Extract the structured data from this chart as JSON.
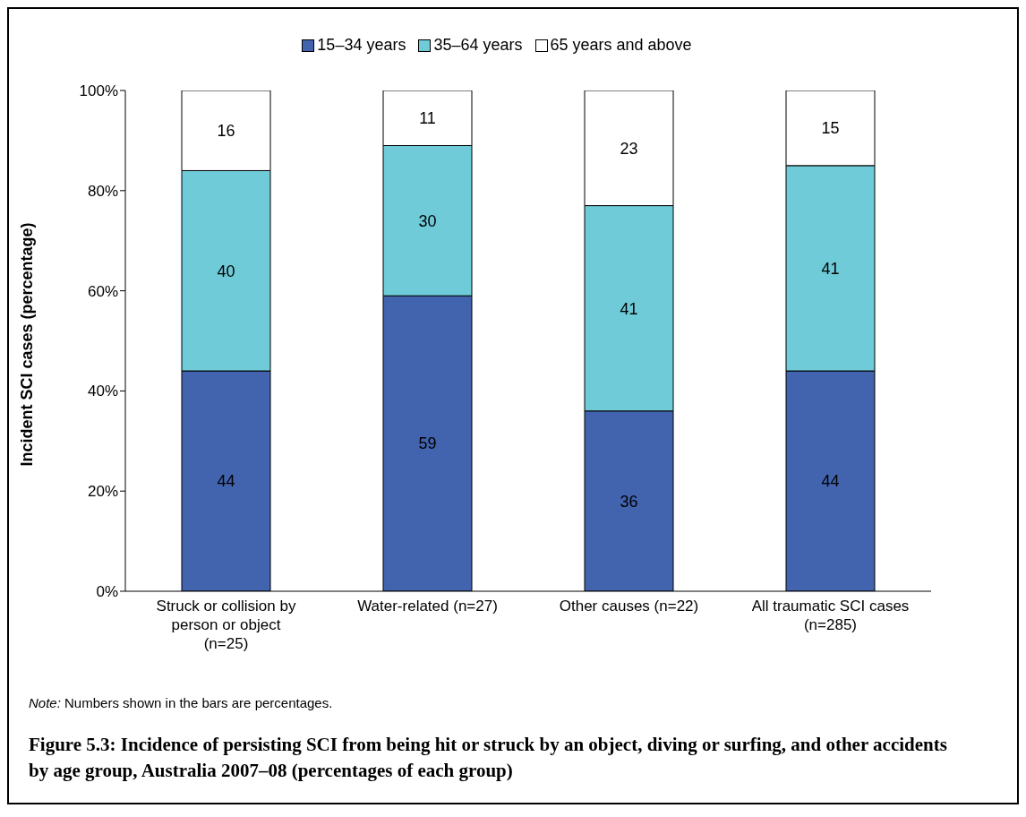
{
  "chart_data": {
    "type": "bar",
    "title": "Figure 5.3: Incidence of persisting SCI from being hit or struck by an object, diving or surfing, and other accidents by age group, Australia 2007–08 (percentages of each group)",
    "ylabel": "Incident SCI cases (percentage)",
    "annotations": [
      "Note: Numbers shown in the bars are percentages."
    ],
    "categories": [
      "Struck or collision by person or object (n=25)",
      "Water-related (n=27)",
      "Other causes (n=22)",
      "All traumatic SCI cases (n=285)"
    ],
    "series": [
      {
        "name": "15–34 years",
        "color": "#4263ae",
        "values": [
          44,
          59,
          36,
          44
        ]
      },
      {
        "name": "35–64 years",
        "color": "#6fcbd8",
        "values": [
          40,
          30,
          41,
          41
        ]
      },
      {
        "name": "65 years and above",
        "color": "#ffffff",
        "values": [
          16,
          11,
          23,
          15
        ]
      }
    ],
    "stacked": true,
    "data_labels": true,
    "grid": false,
    "legend": "top",
    "ylim": [
      0,
      100
    ],
    "yticks": [
      {
        "value": 0,
        "label": "0%"
      },
      {
        "value": 20,
        "label": "20%"
      },
      {
        "value": 40,
        "label": "40%"
      },
      {
        "value": 60,
        "label": "60%"
      },
      {
        "value": 80,
        "label": "80%"
      },
      {
        "value": 100,
        "label": "100%"
      }
    ]
  }
}
